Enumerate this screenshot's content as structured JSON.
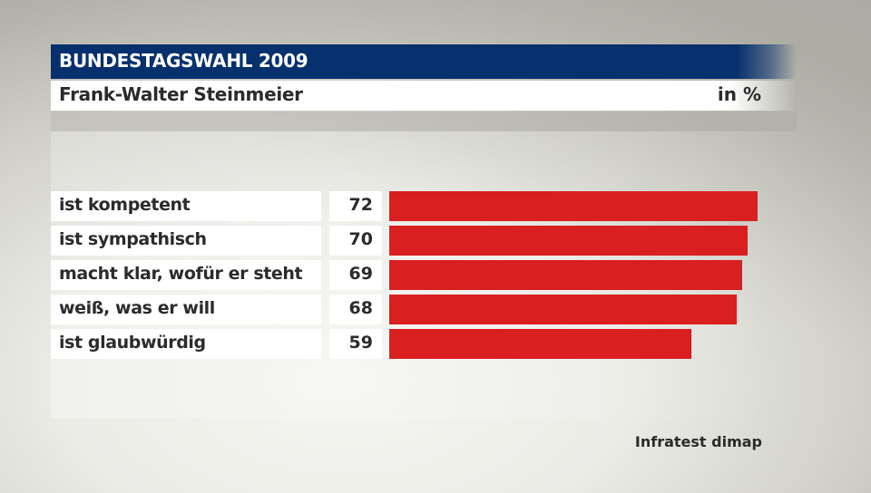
{
  "header": {
    "title": "BUNDESTAGSWAHL 2009",
    "subtitle": "Frank-Walter Steinmeier",
    "unit": "in %"
  },
  "colors": {
    "header_blue": "#06306e",
    "bar_red": "#d91f20",
    "text_dark": "#2b2b2b"
  },
  "rows": [
    {
      "label": "ist kompetent",
      "value": "72"
    },
    {
      "label": "ist sympathisch",
      "value": "70"
    },
    {
      "label": "macht klar, wofür er steht",
      "value": "69"
    },
    {
      "label": "weiß, was er will",
      "value": "68"
    },
    {
      "label": "ist glaubwürdig",
      "value": "59"
    }
  ],
  "source": "Infratest dimap",
  "chart_data": {
    "type": "bar",
    "orientation": "horizontal",
    "title": "BUNDESTAGSWAHL 2009",
    "subtitle": "Frank-Walter Steinmeier",
    "unit": "in %",
    "categories": [
      "ist kompetent",
      "ist sympathisch",
      "macht klar, wofür er steht",
      "weiß, was er will",
      "ist glaubwürdig"
    ],
    "values": [
      72,
      70,
      69,
      68,
      59
    ],
    "xlabel": "",
    "ylabel": "",
    "xlim": [
      0,
      100
    ],
    "grid": false,
    "legend": null,
    "bar_color": "#d91f20",
    "source": "Infratest dimap"
  }
}
